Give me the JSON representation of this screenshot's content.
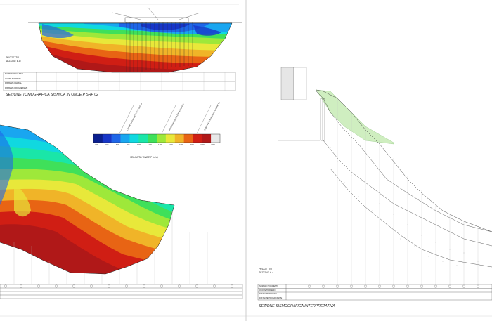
{
  "top_section": {
    "project_label": "PROGETTO",
    "section_label": "SEZIONE B-B",
    "title": "SEZIONE TOMOGRAFICA SISMICA IN ONDE P SRP 02"
  },
  "bottom_section": {
    "project_label": "PROGETTO",
    "section_label": "SEZIONE A-A",
    "title": "SEZIONE SISMOGRAFICA INTERPRETATIVA"
  },
  "table_rows": [
    "NUMERO PICCHETTI",
    "QUOTE TERRENO",
    "DISTANZE PARZIALI",
    "DISTANZE PROGRESSIVE"
  ],
  "legend": {
    "label": "VELOCITA' ONDE P (m/s)",
    "ticks": [
      "200",
      "400",
      "600",
      "800",
      "1000",
      "1200",
      "1400",
      "1600",
      "1800",
      "2000",
      "2200",
      "2400"
    ],
    "colors": [
      "#0a1f8f",
      "#1736c8",
      "#1e66e8",
      "#19a6f0",
      "#10d8e0",
      "#1ae6a8",
      "#3fe05a",
      "#9ee83a",
      "#e8e83a",
      "#f0b428",
      "#e86414",
      "#d01e14",
      "#b01818",
      "#e8e8e8"
    ],
    "category_labels": [
      "COPERTURA DI DETRITO E SUOLO",
      "ROCCIA ALTERATA E FRATTURATA",
      "SUBSTRATO ROCCIOSO COMPATTO"
    ]
  },
  "colors": {
    "line": "#222222",
    "grid": "#9a9a9a",
    "green_fill": "#cfeec0"
  }
}
